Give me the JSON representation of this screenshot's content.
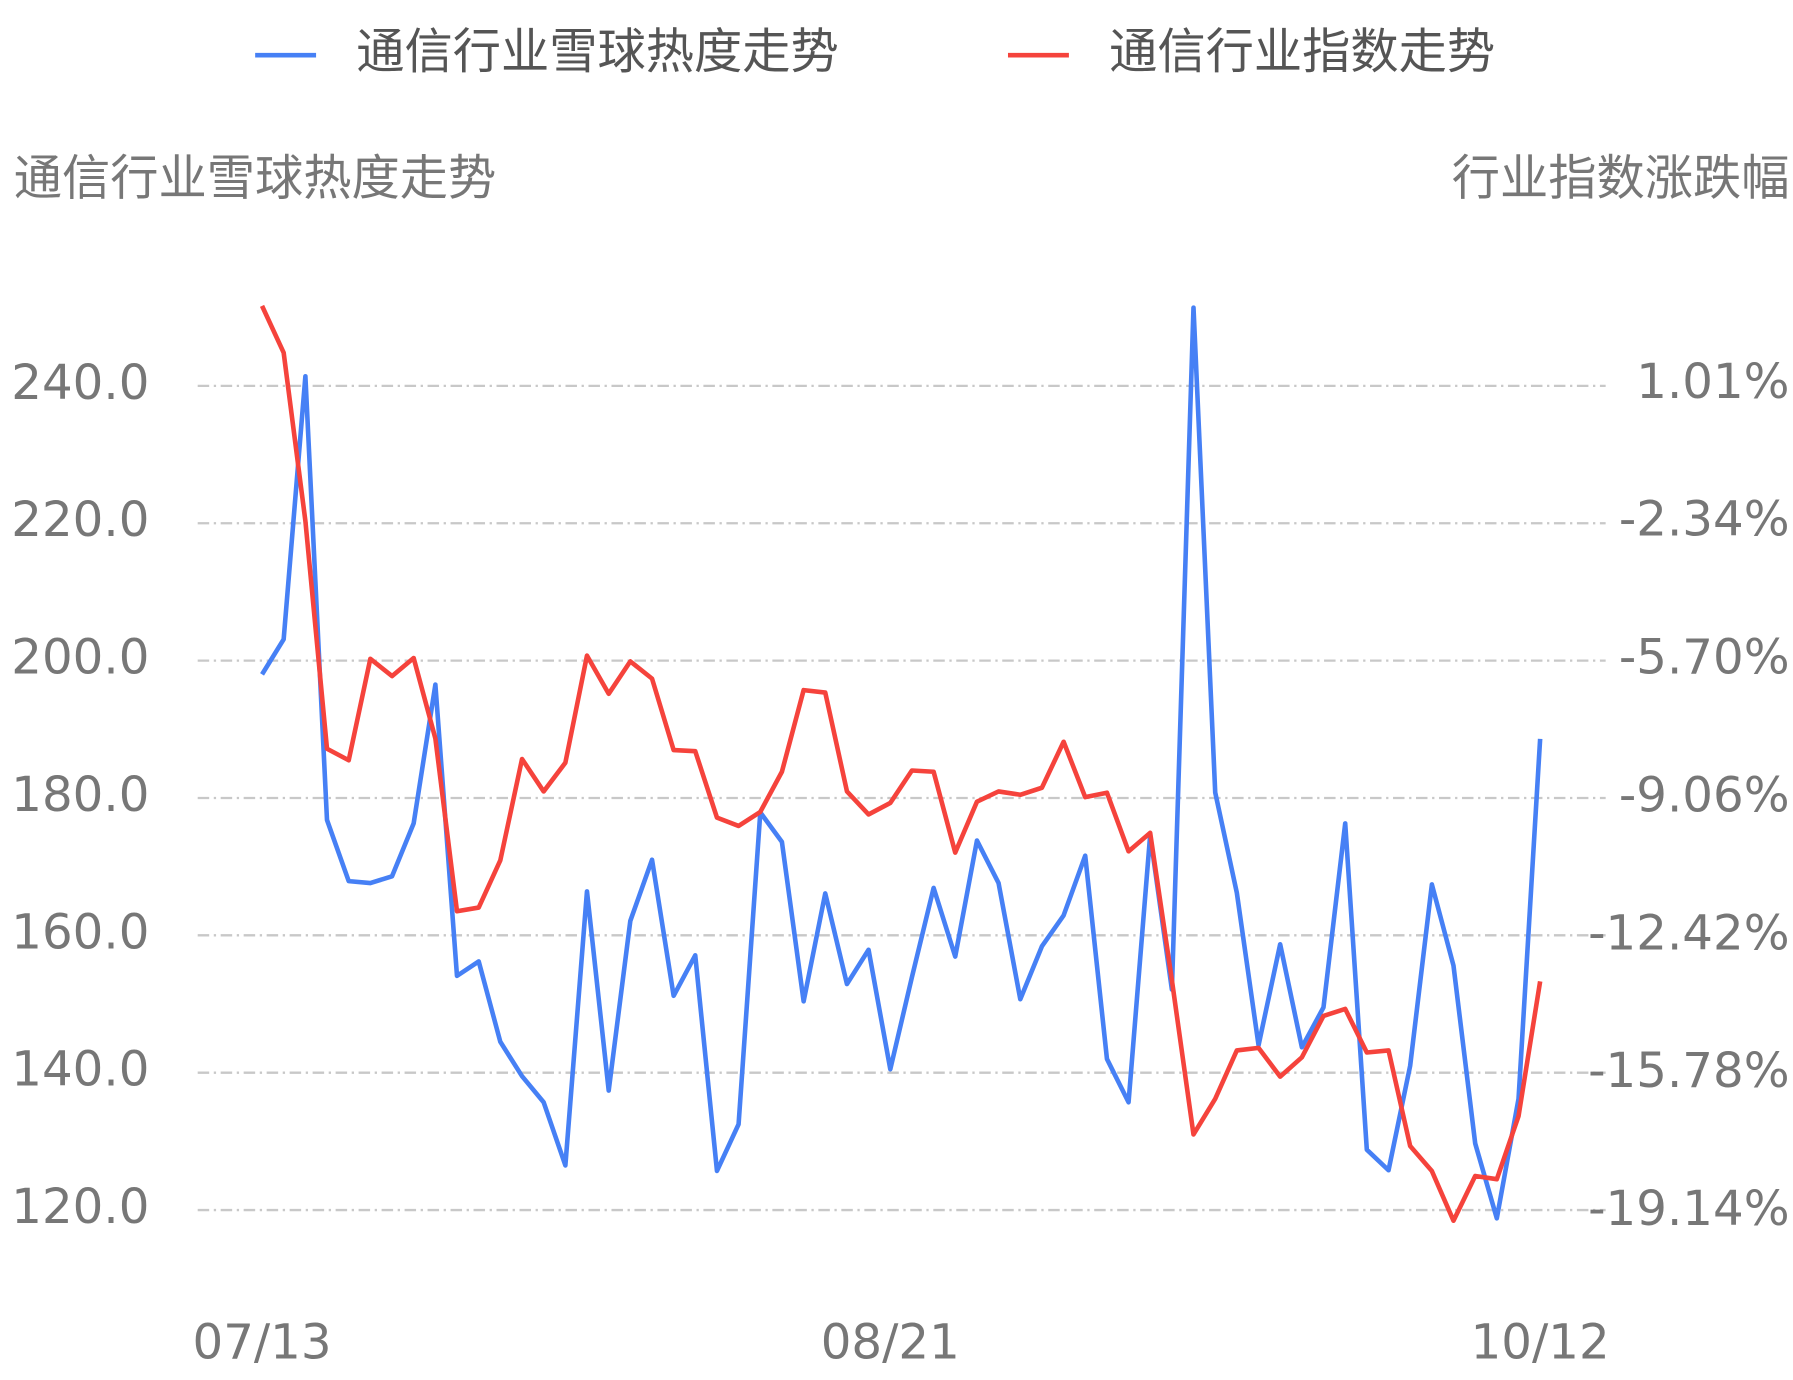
{
  "chart_data": {
    "type": "line",
    "y_label": "通信行业雪球热度走势",
    "y2_label": "行业指数涨跌幅",
    "categories": [
      "07/13",
      null,
      null,
      null,
      null,
      null,
      null,
      null,
      null,
      null,
      null,
      null,
      null,
      null,
      null,
      null,
      null,
      null,
      null,
      null,
      null,
      null,
      null,
      null,
      null,
      null,
      null,
      null,
      null,
      "08/21",
      null,
      null,
      null,
      null,
      null,
      null,
      null,
      null,
      null,
      null,
      null,
      null,
      null,
      null,
      null,
      null,
      null,
      null,
      null,
      null,
      null,
      null,
      null,
      null,
      null,
      null,
      null,
      null,
      null,
      "10/12"
    ],
    "series": [
      {
        "name": "通信行业雪球热度走势",
        "color": "#4680f5",
        "values": [
          198.0,
          203.1,
          241.4,
          176.8,
          167.9,
          167.6,
          168.6,
          176.3,
          196.5,
          154.1,
          156.2,
          144.5,
          139.5,
          135.7,
          126.5,
          166.4,
          137.4,
          162.1,
          171.0,
          151.2,
          157.1,
          125.7,
          132.5,
          177.9,
          173.6,
          150.4,
          166.1,
          152.9,
          157.9,
          140.5,
          153.9,
          166.9,
          156.9,
          173.8,
          167.6,
          150.7,
          158.4,
          162.9,
          171.6,
          142.0,
          135.7,
          174.6,
          152.1,
          251.4,
          180.8,
          166.2,
          144.0,
          158.7,
          143.7,
          149.5,
          176.3,
          128.8,
          125.8,
          141.0,
          167.4,
          155.6,
          129.7,
          118.8,
          136.2,
          188.6
        ]
      },
      {
        "name": "通信行业指数走势",
        "color": "#f5433c",
        "axis": "y2",
        "values": [
          2.94,
          1.8,
          -2.3,
          -7.85,
          -8.13,
          -5.66,
          -6.08,
          -5.64,
          -7.6,
          -11.81,
          -11.72,
          -10.57,
          -8.1,
          -8.89,
          -8.19,
          -5.58,
          -6.51,
          -5.72,
          -6.14,
          -7.88,
          -7.91,
          -9.53,
          -9.73,
          -9.39,
          -8.41,
          -6.42,
          -6.48,
          -8.89,
          -9.45,
          -9.17,
          -8.38,
          -8.41,
          -10.38,
          -9.14,
          -8.89,
          -8.97,
          -8.8,
          -7.68,
          -9.03,
          -8.92,
          -10.35,
          -9.9,
          -13.49,
          -17.25,
          -16.38,
          -15.2,
          -15.14,
          -15.84,
          -15.37,
          -14.36,
          -14.19,
          -15.25,
          -15.2,
          -17.53,
          -18.14,
          -19.35,
          -18.26,
          -18.34,
          -16.8,
          -13.52
        ]
      }
    ],
    "ylim": [
      112,
      256
    ],
    "yticks": [
      {
        "value": 120,
        "label": "120.0"
      },
      {
        "value": 140,
        "label": "140.0"
      },
      {
        "value": 160,
        "label": "160.0"
      },
      {
        "value": 180,
        "label": "180.0"
      },
      {
        "value": 200,
        "label": "200.0"
      },
      {
        "value": 220,
        "label": "220.0"
      },
      {
        "value": 240,
        "label": "240.0"
      }
    ],
    "y2lim": [
      -20.43,
      3.67
    ],
    "y2ticks": [
      {
        "value": -19.14,
        "label": "-19.14%"
      },
      {
        "value": -15.78,
        "label": "-15.78%"
      },
      {
        "value": -12.42,
        "label": "-12.42%"
      },
      {
        "value": -9.06,
        "label": "-9.06%"
      },
      {
        "value": -5.7,
        "label": "-5.70%"
      },
      {
        "value": -2.34,
        "label": "-2.34%"
      },
      {
        "value": 1.01,
        "label": "1.01%"
      }
    ],
    "grid": true,
    "legend": "top"
  }
}
